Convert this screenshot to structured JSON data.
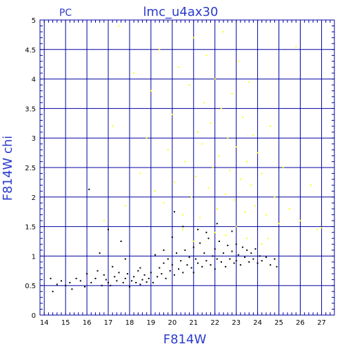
{
  "chart_data": {
    "type": "scatter",
    "corner_label": "PC",
    "title": "lmc_u4ax30",
    "xlabel": "F814W",
    "ylabel": "F814W chi",
    "xlim": [
      13.8,
      27.6
    ],
    "ylim": [
      0,
      5
    ],
    "x_ticks": [
      14,
      15,
      16,
      17,
      18,
      19,
      20,
      21,
      22,
      23,
      24,
      25,
      26,
      27
    ],
    "y_ticks": [
      0,
      0.5,
      1,
      1.5,
      2,
      2.5,
      3,
      3.5,
      4,
      4.5,
      5
    ],
    "y_tick_labels": [
      "0",
      "0.5",
      "1",
      "1.5",
      "2",
      "2.5",
      "3",
      "3.5",
      "4",
      "4.5",
      "5"
    ],
    "grid": true,
    "colors": {
      "axis": "#0000a0",
      "text": "#2a3bcc",
      "series_black": "#000000",
      "series_yellow": "#ffff00"
    },
    "series": [
      {
        "color": "#000000",
        "points": [
          [
            14.3,
            0.62
          ],
          [
            14.4,
            0.4
          ],
          [
            14.6,
            0.52
          ],
          [
            14.8,
            0.58
          ],
          [
            15.0,
            0.5
          ],
          [
            15.2,
            0.55
          ],
          [
            15.3,
            0.44
          ],
          [
            15.5,
            0.62
          ],
          [
            15.7,
            0.58
          ],
          [
            15.9,
            0.48
          ],
          [
            16.0,
            0.7
          ],
          [
            16.1,
            2.13
          ],
          [
            16.2,
            0.55
          ],
          [
            16.4,
            0.62
          ],
          [
            16.5,
            0.75
          ],
          [
            16.6,
            1.05
          ],
          [
            16.7,
            0.5
          ],
          [
            16.8,
            0.68
          ],
          [
            16.9,
            0.6
          ],
          [
            17.0,
            0.55
          ],
          [
            17.0,
            1.45
          ],
          [
            17.1,
            0.5
          ],
          [
            17.2,
            0.82
          ],
          [
            17.3,
            0.65
          ],
          [
            17.4,
            0.58
          ],
          [
            17.5,
            0.72
          ],
          [
            17.6,
            1.25
          ],
          [
            17.7,
            0.55
          ],
          [
            17.8,
            0.62
          ],
          [
            17.9,
            0.7
          ],
          [
            18.0,
            0.48
          ],
          [
            18.1,
            0.58
          ],
          [
            18.2,
            0.65
          ],
          [
            18.3,
            0.55
          ],
          [
            18.4,
            0.75
          ],
          [
            18.5,
            0.52
          ],
          [
            18.6,
            0.6
          ],
          [
            18.7,
            0.68
          ],
          [
            18.8,
            0.56
          ],
          [
            18.9,
            0.62
          ],
          [
            19.0,
            0.72
          ],
          [
            19.1,
            0.55
          ],
          [
            19.2,
            1.02
          ],
          [
            19.3,
            0.65
          ],
          [
            19.4,
            0.8
          ],
          [
            19.5,
            0.7
          ],
          [
            19.6,
            0.88
          ],
          [
            19.7,
            0.62
          ],
          [
            19.8,
            0.95
          ],
          [
            19.9,
            0.75
          ],
          [
            20.0,
            0.85
          ],
          [
            20.0,
            1.32
          ],
          [
            20.1,
            0.68
          ],
          [
            20.2,
            1.05
          ],
          [
            20.3,
            0.78
          ],
          [
            20.4,
            0.92
          ],
          [
            20.5,
            0.72
          ],
          [
            20.6,
            1.1
          ],
          [
            20.7,
            0.85
          ],
          [
            20.8,
            0.98
          ],
          [
            20.9,
            0.8
          ],
          [
            21.0,
            1.15
          ],
          [
            21.0,
            0.72
          ],
          [
            21.1,
            0.95
          ],
          [
            21.2,
            0.88
          ],
          [
            21.3,
            1.22
          ],
          [
            21.4,
            0.82
          ],
          [
            21.5,
            1.05
          ],
          [
            21.6,
            0.92
          ],
          [
            21.7,
            1.3
          ],
          [
            21.8,
            0.85
          ],
          [
            21.9,
            1.0
          ],
          [
            22.0,
            1.12
          ],
          [
            22.0,
            0.78
          ],
          [
            22.1,
            0.95
          ],
          [
            22.2,
            1.25
          ],
          [
            22.3,
            0.9
          ],
          [
            22.4,
            1.05
          ],
          [
            22.5,
            0.82
          ],
          [
            22.6,
            1.18
          ],
          [
            22.7,
            0.95
          ],
          [
            22.8,
            1.08
          ],
          [
            22.9,
            0.88
          ],
          [
            23.0,
            1.2
          ],
          [
            23.0,
            0.92
          ],
          [
            23.1,
            1.02
          ],
          [
            23.2,
            0.85
          ],
          [
            23.3,
            1.15
          ],
          [
            23.4,
            0.98
          ],
          [
            23.5,
            1.1
          ],
          [
            23.6,
            0.9
          ],
          [
            23.7,
            1.05
          ],
          [
            23.8,
            0.95
          ],
          [
            23.9,
            1.12
          ],
          [
            24.0,
            0.88
          ],
          [
            24.1,
            1.0
          ],
          [
            24.2,
            0.92
          ],
          [
            24.4,
            0.98
          ],
          [
            24.6,
            0.85
          ],
          [
            24.8,
            0.95
          ],
          [
            24.9,
            0.82
          ],
          [
            20.5,
            1.5
          ],
          [
            21.2,
            1.45
          ],
          [
            22.1,
            1.55
          ],
          [
            22.8,
            1.42
          ],
          [
            20.1,
            1.75
          ],
          [
            21.6,
            1.4
          ],
          [
            19.6,
            1.1
          ],
          [
            18.5,
            0.8
          ],
          [
            17.8,
            0.95
          ]
        ]
      },
      {
        "color": "#ffff00",
        "points": [
          [
            16.8,
            1.6
          ],
          [
            17.2,
            3.2
          ],
          [
            17.5,
            4.9
          ],
          [
            17.8,
            1.85
          ],
          [
            18.2,
            4.1
          ],
          [
            18.5,
            2.4
          ],
          [
            18.8,
            3.0
          ],
          [
            19.0,
            3.8
          ],
          [
            19.2,
            2.1
          ],
          [
            19.4,
            4.5
          ],
          [
            19.6,
            1.9
          ],
          [
            19.8,
            2.8
          ],
          [
            20.0,
            3.4
          ],
          [
            20.1,
            2.25
          ],
          [
            20.3,
            4.2
          ],
          [
            20.5,
            1.7
          ],
          [
            20.6,
            2.6
          ],
          [
            20.8,
            3.9
          ],
          [
            20.9,
            2.0
          ],
          [
            21.0,
            4.7
          ],
          [
            21.1,
            2.35
          ],
          [
            21.2,
            3.1
          ],
          [
            21.3,
            1.65
          ],
          [
            21.4,
            2.9
          ],
          [
            21.5,
            3.6
          ],
          [
            21.6,
            4.4
          ],
          [
            21.7,
            2.15
          ],
          [
            21.8,
            3.25
          ],
          [
            21.9,
            2.5
          ],
          [
            22.0,
            4.0
          ],
          [
            22.1,
            1.8
          ],
          [
            22.2,
            2.7
          ],
          [
            22.3,
            3.5
          ],
          [
            22.4,
            4.8
          ],
          [
            22.5,
            2.05
          ],
          [
            22.6,
            3.0
          ],
          [
            22.7,
            2.45
          ],
          [
            22.8,
            3.75
          ],
          [
            22.9,
            1.95
          ],
          [
            23.0,
            2.85
          ],
          [
            23.1,
            4.3
          ],
          [
            23.2,
            2.3
          ],
          [
            23.3,
            3.35
          ],
          [
            23.4,
            1.75
          ],
          [
            23.5,
            2.6
          ],
          [
            23.6,
            3.95
          ],
          [
            23.7,
            2.2
          ],
          [
            23.8,
            3.05
          ],
          [
            23.9,
            1.85
          ],
          [
            24.0,
            2.75
          ],
          [
            24.2,
            2.4
          ],
          [
            24.4,
            1.7
          ],
          [
            24.6,
            3.2
          ],
          [
            24.8,
            2.0
          ],
          [
            25.0,
            1.55
          ],
          [
            25.2,
            2.5
          ],
          [
            25.5,
            1.8
          ],
          [
            25.8,
            4.55
          ],
          [
            26.0,
            1.6
          ],
          [
            26.5,
            2.2
          ],
          [
            26.8,
            1.45
          ],
          [
            27.0,
            1.48
          ],
          [
            21.0,
            1.25
          ],
          [
            22.5,
            1.35
          ],
          [
            23.5,
            1.3
          ],
          [
            24.2,
            1.2
          ],
          [
            24.5,
            1.3
          ],
          [
            22.0,
            1.4
          ],
          [
            23.0,
            1.5
          ],
          [
            20.5,
            1.45
          ]
        ]
      }
    ]
  }
}
